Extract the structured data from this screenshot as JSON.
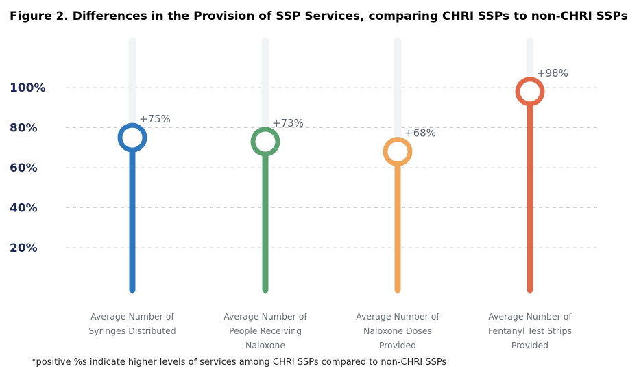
{
  "title": "Figure 2. Differences in the Provision of SSP Services, comparing CHRI SSPs to non-CHRI SSPs",
  "footnote": "*positive %s indicate higher levels of services among CHRI SSPs compared to non-CHRI SSPs",
  "chart_data": {
    "type": "lollipop",
    "title": "Figure 2. Differences in the Provision of SSP Services, comparing CHRI SSPs to non-CHRI SSPs",
    "yticks": [
      20,
      40,
      60,
      80,
      100
    ],
    "ytick_labels": [
      "20%",
      "40%",
      "60%",
      "80%",
      "100%"
    ],
    "ylim": [
      0,
      120
    ],
    "grid": true,
    "categories": [
      [
        "Average Number of",
        "Syringes Distributed"
      ],
      [
        "Average Number of",
        "People Receiving",
        "Naloxone"
      ],
      [
        "Average Number of",
        "Naloxone Doses",
        "Provided"
      ],
      [
        "Average Number of",
        "Fentanyl Test Strips",
        "Provided"
      ]
    ],
    "values": [
      75,
      73,
      68,
      98
    ],
    "value_labels": [
      "+75%",
      "+73%",
      "+68%",
      "+98%"
    ],
    "colors": [
      "#2f78bd",
      "#5aa371",
      "#efa55a",
      "#e0694a"
    ]
  }
}
